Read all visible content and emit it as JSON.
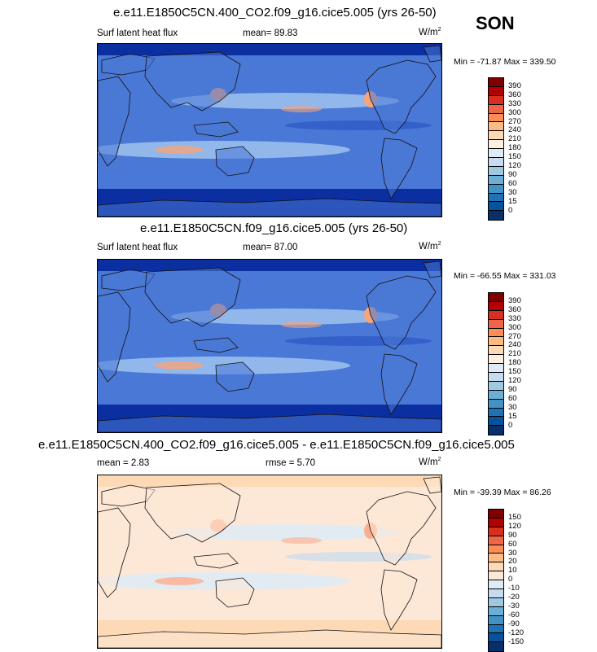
{
  "season": "SON",
  "panels": [
    {
      "title": "e.e11.E1850C5CN.400_CO2.f09_g16.cice5.005 (yrs 26-50)",
      "left_label": "Surf latent heat flux",
      "mean": "mean=  89.83",
      "units": "W/m",
      "units_sup": "2",
      "minmax": "Min = -71.87 Max = 339.50",
      "colorbar": {
        "labels": [
          "390",
          "360",
          "330",
          "300",
          "270",
          "240",
          "210",
          "180",
          "150",
          "120",
          "90",
          "60",
          "30",
          "15",
          "0"
        ],
        "colors": [
          "#7f0000",
          "#b30000",
          "#d7301f",
          "#ef6548",
          "#fc8d59",
          "#fdbb84",
          "#fdd9b5",
          "#fef0e0",
          "#deebf7",
          "#c6dbef",
          "#9ecae1",
          "#6baed6",
          "#4292c6",
          "#2171b5",
          "#08519c",
          "#08306b"
        ]
      },
      "map_colors": {
        "ocean_base": "#4a78d6",
        "pole": "#0b2ea0",
        "band": "#9ec2ef",
        "hot": "#f6a47a",
        "cool": "#2b55c4",
        "land_outline": "#111111"
      }
    },
    {
      "title": "e.e11.E1850C5CN.f09_g16.cice5.005 (yrs 26-50)",
      "left_label": "Surf latent heat flux",
      "mean": "mean=  87.00",
      "units": "W/m",
      "units_sup": "2",
      "minmax": "Min = -66.55 Max = 331.03",
      "colorbar": {
        "labels": [
          "390",
          "360",
          "330",
          "300",
          "270",
          "240",
          "210",
          "180",
          "150",
          "120",
          "90",
          "60",
          "30",
          "15",
          "0"
        ],
        "colors": [
          "#7f0000",
          "#b30000",
          "#d7301f",
          "#ef6548",
          "#fc8d59",
          "#fdbb84",
          "#fdd9b5",
          "#fef0e0",
          "#deebf7",
          "#c6dbef",
          "#9ecae1",
          "#6baed6",
          "#4292c6",
          "#2171b5",
          "#08519c",
          "#08306b"
        ]
      },
      "map_colors": {
        "ocean_base": "#4a78d6",
        "pole": "#0b2ea0",
        "band": "#9ec2ef",
        "hot": "#f6a47a",
        "cool": "#2b55c4",
        "land_outline": "#111111"
      }
    },
    {
      "title": "e.e11.E1850C5CN.400_CO2.f09_g16.cice5.005 - e.e11.E1850C5CN.f09_g16.cice5.005",
      "left_label": "mean =   2.83",
      "mean": "rmse =   5.70",
      "units": "W/m",
      "units_sup": "2",
      "minmax": "Min = -39.39 Max = 86.26",
      "colorbar": {
        "labels": [
          "150",
          "120",
          "90",
          "60",
          "30",
          "20",
          "10",
          "0",
          "-10",
          "-20",
          "-30",
          "-60",
          "-90",
          "-120",
          "-150"
        ],
        "colors": [
          "#7f0000",
          "#b30000",
          "#d7301f",
          "#ef6548",
          "#fc8d59",
          "#fdbb84",
          "#fdd9b5",
          "#fde7d6",
          "#deebf7",
          "#c6dbef",
          "#9ecae1",
          "#6baed6",
          "#4292c6",
          "#2171b5",
          "#08519c",
          "#08306b"
        ]
      },
      "map_colors": {
        "ocean_base": "#fde7d6",
        "pole": "#fdd9b5",
        "band": "#deebf7",
        "hot": "#fcae91",
        "cool": "#c6dbef",
        "land_outline": "#111111"
      }
    }
  ]
}
